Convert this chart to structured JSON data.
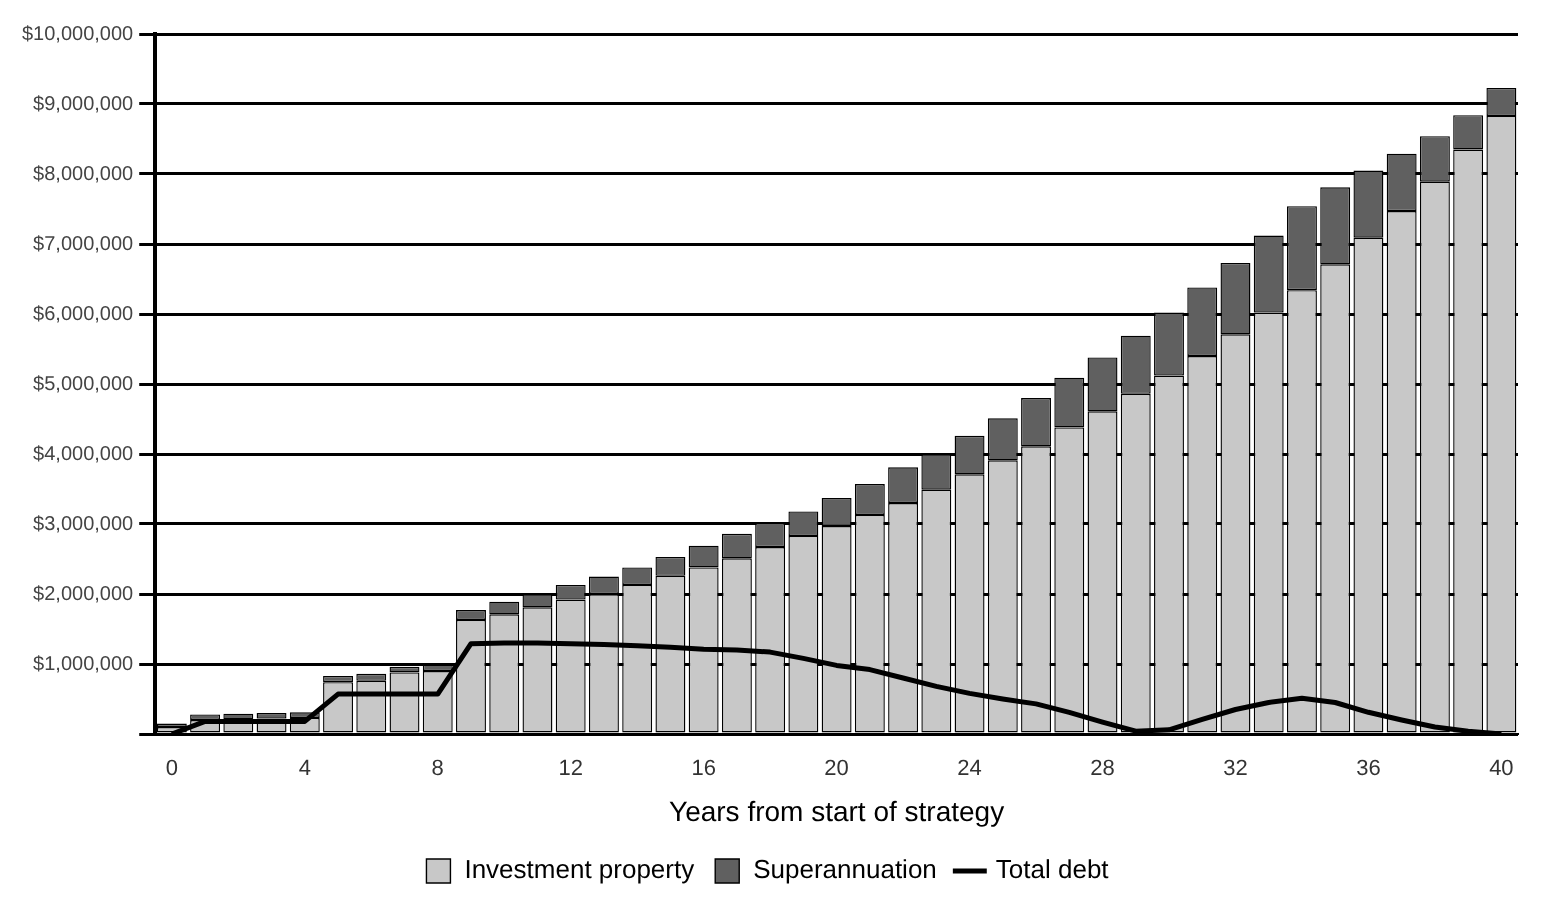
{
  "chart_data": {
    "type": "bar",
    "stacked": true,
    "xlabel": "Years from start of strategy",
    "categories": [
      "0",
      null,
      null,
      null,
      "4",
      null,
      null,
      null,
      "8",
      null,
      null,
      null,
      "12",
      null,
      null,
      null,
      "16",
      null,
      null,
      null,
      "20",
      null,
      null,
      null,
      "24",
      null,
      null,
      null,
      "28",
      null,
      null,
      null,
      "32",
      null,
      null,
      null,
      "36",
      null,
      null,
      null,
      "40"
    ],
    "series": [
      {
        "name": "Investment property",
        "color": "#c8c8c8",
        "values": [
          100000,
          200000,
          210000,
          220000,
          230000,
          740000,
          760000,
          880000,
          900000,
          1630000,
          1710000,
          1810000,
          1920000,
          2000000,
          2130000,
          2260000,
          2380000,
          2510000,
          2670000,
          2830000,
          2970000,
          3130000,
          3300000,
          3490000,
          3710000,
          3910000,
          4110000,
          4380000,
          4610000,
          4860000,
          5120000,
          5400000,
          5710000,
          6020000,
          6340000,
          6710000,
          7090000,
          7470000,
          7890000,
          8350000,
          8830000
        ]
      },
      {
        "name": "Superannuation",
        "color": "#606060",
        "values": [
          50000,
          80000,
          80000,
          80000,
          80000,
          90000,
          100000,
          80000,
          90000,
          140000,
          180000,
          190000,
          210000,
          250000,
          250000,
          270000,
          310000,
          350000,
          350000,
          350000,
          400000,
          440000,
          510000,
          510000,
          550000,
          600000,
          690000,
          710000,
          770000,
          830000,
          900000,
          980000,
          1020000,
          1100000,
          1200000,
          1100000,
          960000,
          820000,
          650000,
          490000,
          400000
        ]
      },
      {
        "name": "Total debt",
        "type": "line",
        "color": "#000000",
        "values": [
          0,
          180000,
          180000,
          180000,
          180000,
          570000,
          570000,
          570000,
          570000,
          1290000,
          1300000,
          1300000,
          1290000,
          1280000,
          1260000,
          1240000,
          1210000,
          1200000,
          1170000,
          1080000,
          980000,
          920000,
          800000,
          680000,
          580000,
          500000,
          430000,
          310000,
          170000,
          40000,
          60000,
          210000,
          350000,
          450000,
          510000,
          450000,
          310000,
          200000,
          100000,
          40000,
          0
        ]
      }
    ],
    "ylim": [
      0,
      10000000
    ],
    "yticks": [
      {
        "value": 0,
        "label": null
      },
      {
        "value": 1000000,
        "label": "$1,000,000"
      },
      {
        "value": 2000000,
        "label": "$2,000,000"
      },
      {
        "value": 3000000,
        "label": "$3,000,000"
      },
      {
        "value": 4000000,
        "label": "$4,000,000"
      },
      {
        "value": 5000000,
        "label": "$5,000,000"
      },
      {
        "value": 6000000,
        "label": "$6,000,000"
      },
      {
        "value": 7000000,
        "label": "$7,000,000"
      },
      {
        "value": 8000000,
        "label": "$8,000,000"
      },
      {
        "value": 9000000,
        "label": "$9,000,000"
      },
      {
        "value": 10000000,
        "label": "$10,000,000"
      }
    ],
    "grid": "y",
    "legend": "bottom",
    "marker": "none",
    "line_style": "solid"
  }
}
